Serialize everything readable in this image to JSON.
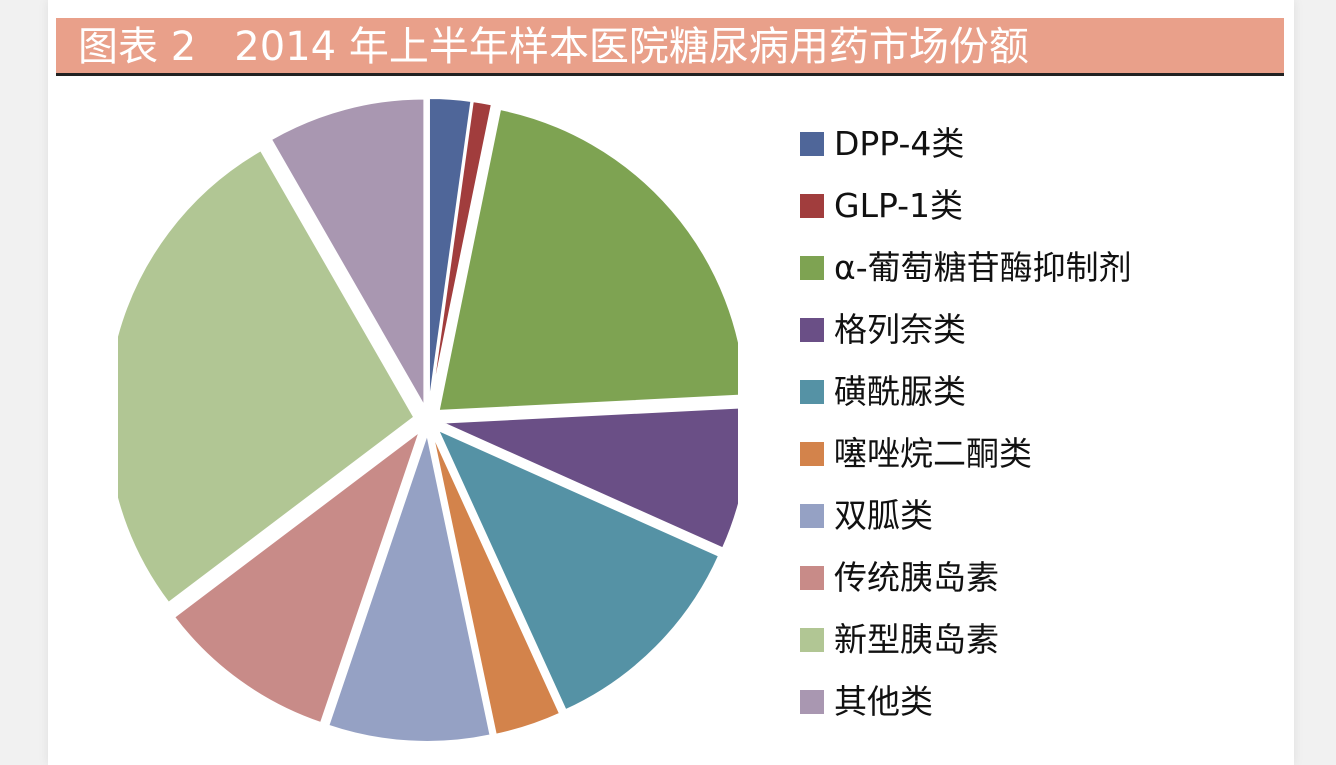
{
  "title": "图表 2   2014 年上半年样本医院糖尿病用药市场份额",
  "chart_data": {
    "type": "pie",
    "title": "图表 2   2014 年上半年样本医院糖尿病用药市场份额",
    "legend_position": "right",
    "categories": [
      "DPP-4类",
      "GLP-1类",
      "α-葡萄糖苷酶抑制剂",
      "格列奈类",
      "磺酰脲类",
      "噻唑烷二酮类",
      "双胍类",
      "传统胰岛素",
      "新型胰岛素",
      "其他类"
    ],
    "values": [
      2.2,
      1.0,
      21.0,
      7.5,
      11.5,
      3.5,
      8.5,
      9.5,
      27.0,
      8.3
    ],
    "unit": "%",
    "colors": [
      "#4f6699",
      "#a13d3d",
      "#7ea352",
      "#6a4f86",
      "#5592a5",
      "#d3834b",
      "#95a1c4",
      "#c88b88",
      "#b1c694",
      "#a997b1"
    ]
  }
}
